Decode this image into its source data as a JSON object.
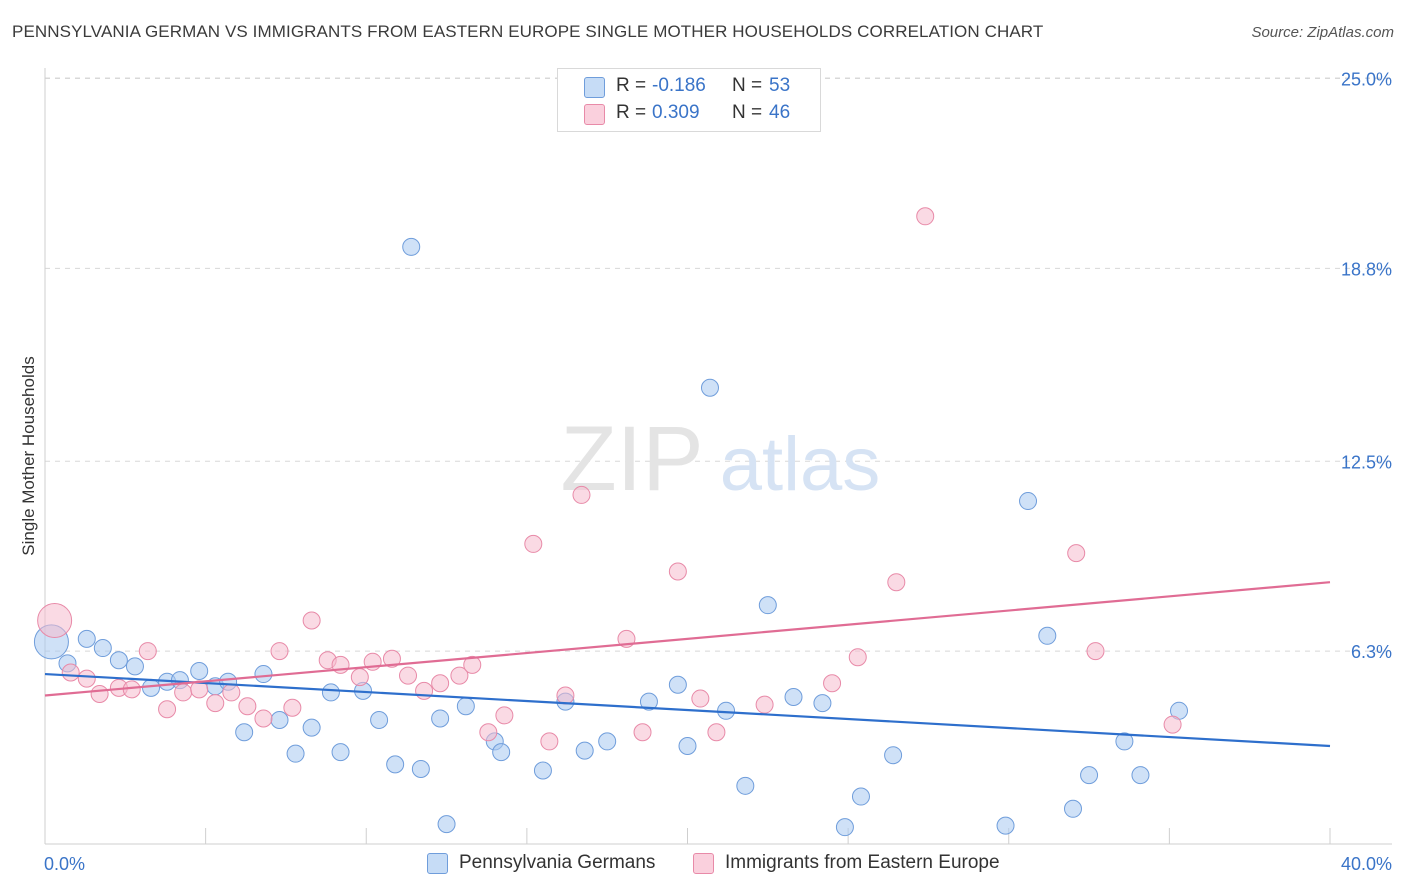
{
  "title": "PENNSYLVANIA GERMAN VS IMMIGRANTS FROM EASTERN EUROPE SINGLE MOTHER HOUSEHOLDS CORRELATION CHART",
  "source": "Source: ZipAtlas.com",
  "watermark": {
    "zip": "ZIP",
    "atlas": "atlas"
  },
  "legend": {
    "r_label": "R =",
    "n_label": "N =",
    "rows": [
      {
        "r": "-0.186",
        "n": "53"
      },
      {
        "r": "0.309",
        "n": "46"
      }
    ]
  },
  "colors": {
    "blue_fill": "#a8c8f0",
    "blue_stroke": "#6f9ddb",
    "blue_line": "#2e6fcc",
    "pink_fill": "#f6bccd",
    "pink_stroke": "#e88aa8",
    "pink_line": "#e06c94",
    "tick_label": "#3a74c8",
    "grid": "#d8d8d8"
  },
  "chart_data": {
    "type": "scatter",
    "title": "PENNSYLVANIA GERMAN VS IMMIGRANTS FROM EASTERN EUROPE SINGLE MOTHER HOUSEHOLDS CORRELATION CHART",
    "xlabel": "",
    "ylabel": "Single Mother Households",
    "xlim": [
      0,
      40
    ],
    "ylim": [
      0,
      25.6
    ],
    "x_tick_labels": [
      "0.0%",
      "40.0%"
    ],
    "y_ticks": [
      6.3,
      12.5,
      18.8,
      25.0
    ],
    "y_tick_labels": [
      "6.3%",
      "12.5%",
      "18.8%",
      "25.0%"
    ],
    "grid": true,
    "series": [
      {
        "name": "Pennsylvania Germans",
        "color": "blue",
        "trend": {
          "x": [
            0,
            40
          ],
          "y": [
            5.55,
            3.2
          ]
        },
        "points": [
          {
            "x": 0.2,
            "y": 6.6,
            "size": "large"
          },
          {
            "x": 0.7,
            "y": 5.9
          },
          {
            "x": 1.3,
            "y": 6.7
          },
          {
            "x": 1.8,
            "y": 6.4
          },
          {
            "x": 2.3,
            "y": 6.0
          },
          {
            "x": 2.8,
            "y": 5.8
          },
          {
            "x": 3.3,
            "y": 5.1
          },
          {
            "x": 3.8,
            "y": 5.3
          },
          {
            "x": 4.2,
            "y": 5.35
          },
          {
            "x": 4.8,
            "y": 5.65
          },
          {
            "x": 5.3,
            "y": 5.15
          },
          {
            "x": 5.7,
            "y": 5.3
          },
          {
            "x": 6.2,
            "y": 3.65
          },
          {
            "x": 6.8,
            "y": 5.55
          },
          {
            "x": 7.3,
            "y": 4.05
          },
          {
            "x": 7.8,
            "y": 2.95
          },
          {
            "x": 8.3,
            "y": 3.8
          },
          {
            "x": 8.9,
            "y": 4.95
          },
          {
            "x": 9.2,
            "y": 3.0
          },
          {
            "x": 9.9,
            "y": 5.0
          },
          {
            "x": 10.4,
            "y": 4.05
          },
          {
            "x": 10.9,
            "y": 2.6
          },
          {
            "x": 11.4,
            "y": 19.5
          },
          {
            "x": 11.7,
            "y": 2.45
          },
          {
            "x": 12.5,
            "y": 0.65
          },
          {
            "x": 12.3,
            "y": 4.1
          },
          {
            "x": 13.1,
            "y": 4.5
          },
          {
            "x": 14.0,
            "y": 3.35
          },
          {
            "x": 14.2,
            "y": 3.0
          },
          {
            "x": 15.5,
            "y": 2.4
          },
          {
            "x": 16.2,
            "y": 4.65
          },
          {
            "x": 16.8,
            "y": 3.05
          },
          {
            "x": 17.5,
            "y": 3.35
          },
          {
            "x": 18.8,
            "y": 4.65
          },
          {
            "x": 19.7,
            "y": 5.2
          },
          {
            "x": 20.0,
            "y": 3.2
          },
          {
            "x": 20.7,
            "y": 14.9
          },
          {
            "x": 21.2,
            "y": 4.35
          },
          {
            "x": 21.8,
            "y": 1.9
          },
          {
            "x": 22.5,
            "y": 7.8
          },
          {
            "x": 23.3,
            "y": 4.8
          },
          {
            "x": 24.2,
            "y": 4.6
          },
          {
            "x": 24.9,
            "y": 0.55
          },
          {
            "x": 25.4,
            "y": 1.55
          },
          {
            "x": 26.4,
            "y": 2.9
          },
          {
            "x": 29.9,
            "y": 0.6
          },
          {
            "x": 30.6,
            "y": 11.2
          },
          {
            "x": 31.2,
            "y": 6.8
          },
          {
            "x": 32.0,
            "y": 1.15
          },
          {
            "x": 32.5,
            "y": 2.25
          },
          {
            "x": 33.6,
            "y": 3.35
          },
          {
            "x": 34.1,
            "y": 2.25
          },
          {
            "x": 35.3,
            "y": 4.35
          }
        ]
      },
      {
        "name": "Immigrants from Eastern Europe",
        "color": "pink",
        "trend": {
          "x": [
            0,
            40
          ],
          "y": [
            4.85,
            8.55
          ]
        },
        "points": [
          {
            "x": 0.3,
            "y": 7.3,
            "size": "large"
          },
          {
            "x": 0.8,
            "y": 5.6
          },
          {
            "x": 1.3,
            "y": 5.4
          },
          {
            "x": 1.7,
            "y": 4.9
          },
          {
            "x": 2.3,
            "y": 5.1
          },
          {
            "x": 2.7,
            "y": 5.05
          },
          {
            "x": 3.2,
            "y": 6.3
          },
          {
            "x": 3.8,
            "y": 4.4
          },
          {
            "x": 4.3,
            "y": 4.95
          },
          {
            "x": 4.8,
            "y": 5.05
          },
          {
            "x": 5.3,
            "y": 4.6
          },
          {
            "x": 5.8,
            "y": 4.95
          },
          {
            "x": 6.3,
            "y": 4.5
          },
          {
            "x": 6.8,
            "y": 4.1
          },
          {
            "x": 7.3,
            "y": 6.3
          },
          {
            "x": 7.7,
            "y": 4.45
          },
          {
            "x": 8.3,
            "y": 7.3
          },
          {
            "x": 8.8,
            "y": 6.0
          },
          {
            "x": 9.2,
            "y": 5.85
          },
          {
            "x": 9.8,
            "y": 5.45
          },
          {
            "x": 10.2,
            "y": 5.95
          },
          {
            "x": 10.8,
            "y": 6.05
          },
          {
            "x": 11.3,
            "y": 5.5
          },
          {
            "x": 11.8,
            "y": 5.0
          },
          {
            "x": 12.3,
            "y": 5.25
          },
          {
            "x": 12.9,
            "y": 5.5
          },
          {
            "x": 13.3,
            "y": 5.85
          },
          {
            "x": 13.8,
            "y": 3.65
          },
          {
            "x": 14.3,
            "y": 4.2
          },
          {
            "x": 15.2,
            "y": 9.8
          },
          {
            "x": 15.7,
            "y": 3.35
          },
          {
            "x": 16.2,
            "y": 4.85
          },
          {
            "x": 16.7,
            "y": 11.4
          },
          {
            "x": 18.1,
            "y": 6.7
          },
          {
            "x": 18.6,
            "y": 3.65
          },
          {
            "x": 19.7,
            "y": 8.9
          },
          {
            "x": 20.4,
            "y": 4.75
          },
          {
            "x": 20.9,
            "y": 3.65
          },
          {
            "x": 22.4,
            "y": 4.55
          },
          {
            "x": 24.5,
            "y": 5.25
          },
          {
            "x": 25.3,
            "y": 6.1
          },
          {
            "x": 26.5,
            "y": 8.55
          },
          {
            "x": 27.4,
            "y": 20.5
          },
          {
            "x": 32.1,
            "y": 9.5
          },
          {
            "x": 32.7,
            "y": 6.3
          },
          {
            "x": 35.1,
            "y": 3.9
          }
        ]
      }
    ]
  }
}
